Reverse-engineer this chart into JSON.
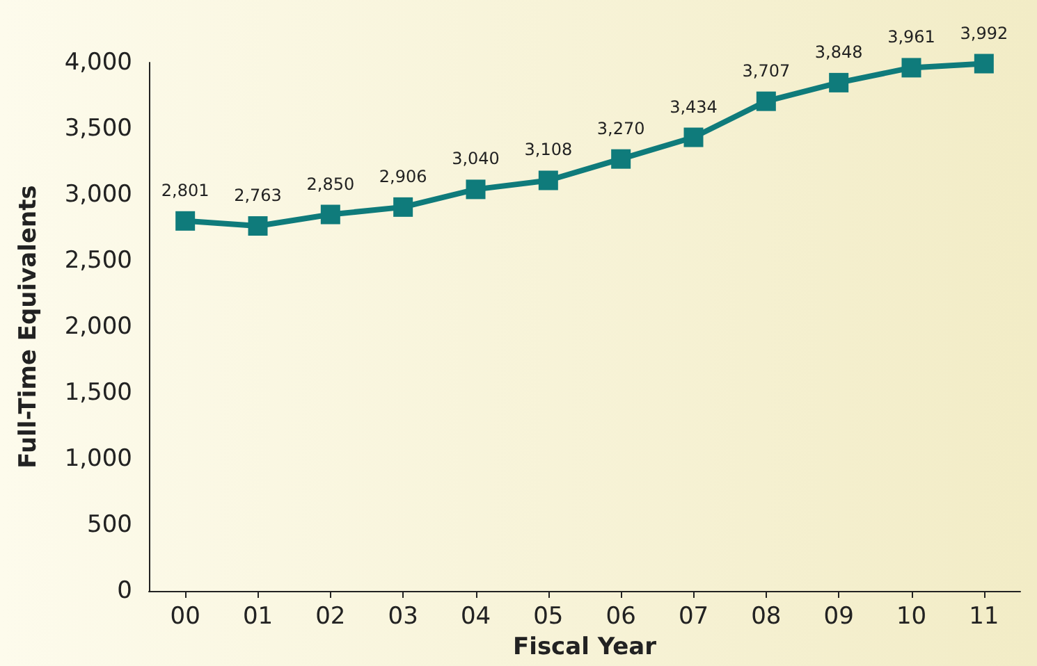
{
  "chart_data": {
    "type": "line",
    "xlabel": "Fiscal Year",
    "ylabel": "Full-Time Equivalents",
    "categories": [
      "00",
      "01",
      "02",
      "03",
      "04",
      "05",
      "06",
      "07",
      "08",
      "09",
      "10",
      "11"
    ],
    "series": [
      {
        "color": "#0f7b7b",
        "values": [
          2801,
          2763,
          2850,
          2906,
          3040,
          3108,
          3270,
          3434,
          3707,
          3848,
          3961,
          3992
        ],
        "value_labels": [
          "2,801",
          "2,763",
          "2,850",
          "2,906",
          "3,040",
          "3,108",
          "3,270",
          "3,434",
          "3,707",
          "3,848",
          "3,961",
          "3,992"
        ]
      }
    ],
    "ylim": [
      0,
      4000
    ],
    "yticks": [
      0,
      500,
      {
        "value": 1000,
        "label": "1,000"
      },
      {
        "value": 1500,
        "label": "1,500"
      },
      {
        "value": 2000,
        "label": "2,000"
      },
      {
        "value": 2500,
        "label": "2,500"
      },
      {
        "value": 3000,
        "label": "3,000"
      },
      {
        "value": 3500,
        "label": "3,500"
      },
      {
        "value": 4000,
        "label": "4,000"
      }
    ],
    "grid": false,
    "marker": "square",
    "line_style": "solid"
  }
}
